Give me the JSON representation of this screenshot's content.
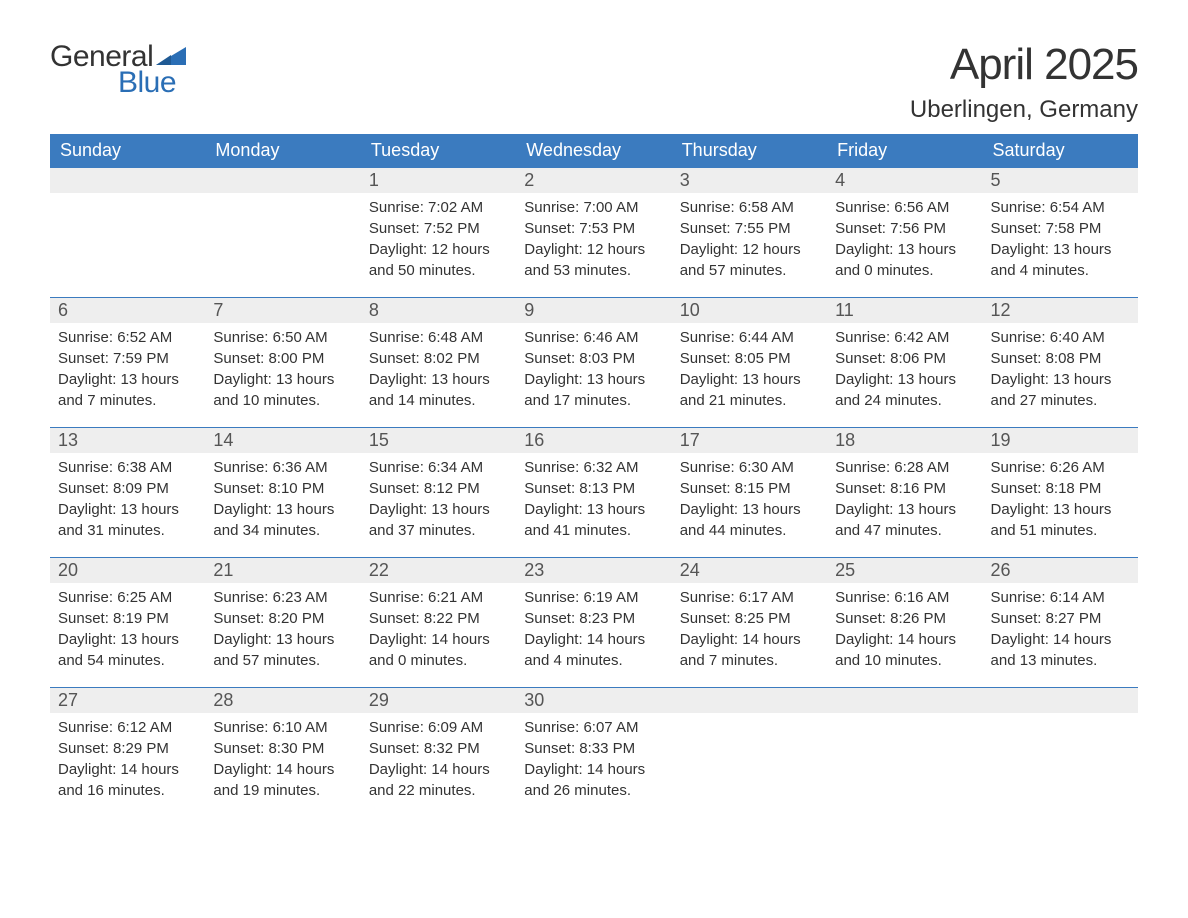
{
  "brand": {
    "general": "General",
    "blue": "Blue",
    "tri_color": "#2a6eb5"
  },
  "header": {
    "month": "April 2025",
    "location": "Uberlingen, Germany"
  },
  "colors": {
    "header_bg": "#3b7bbf",
    "header_text": "#ffffff",
    "daynum_bg": "#eeeeee",
    "row_rule": "#3b7bbf",
    "body_text": "#333333",
    "page_bg": "#ffffff"
  },
  "typography": {
    "month_fontsize_pt": 33,
    "location_fontsize_pt": 18,
    "dayname_fontsize_pt": 14,
    "daynum_fontsize_pt": 14,
    "body_fontsize_pt": 11,
    "font_family": "Arial"
  },
  "calendar": {
    "type": "table",
    "columns": [
      "Sunday",
      "Monday",
      "Tuesday",
      "Wednesday",
      "Thursday",
      "Friday",
      "Saturday"
    ],
    "weeks": [
      [
        null,
        null,
        {
          "n": "1",
          "sunrise": "7:02 AM",
          "sunset": "7:52 PM",
          "dl": "12 hours and 50 minutes."
        },
        {
          "n": "2",
          "sunrise": "7:00 AM",
          "sunset": "7:53 PM",
          "dl": "12 hours and 53 minutes."
        },
        {
          "n": "3",
          "sunrise": "6:58 AM",
          "sunset": "7:55 PM",
          "dl": "12 hours and 57 minutes."
        },
        {
          "n": "4",
          "sunrise": "6:56 AM",
          "sunset": "7:56 PM",
          "dl": "13 hours and 0 minutes."
        },
        {
          "n": "5",
          "sunrise": "6:54 AM",
          "sunset": "7:58 PM",
          "dl": "13 hours and 4 minutes."
        }
      ],
      [
        {
          "n": "6",
          "sunrise": "6:52 AM",
          "sunset": "7:59 PM",
          "dl": "13 hours and 7 minutes."
        },
        {
          "n": "7",
          "sunrise": "6:50 AM",
          "sunset": "8:00 PM",
          "dl": "13 hours and 10 minutes."
        },
        {
          "n": "8",
          "sunrise": "6:48 AM",
          "sunset": "8:02 PM",
          "dl": "13 hours and 14 minutes."
        },
        {
          "n": "9",
          "sunrise": "6:46 AM",
          "sunset": "8:03 PM",
          "dl": "13 hours and 17 minutes."
        },
        {
          "n": "10",
          "sunrise": "6:44 AM",
          "sunset": "8:05 PM",
          "dl": "13 hours and 21 minutes."
        },
        {
          "n": "11",
          "sunrise": "6:42 AM",
          "sunset": "8:06 PM",
          "dl": "13 hours and 24 minutes."
        },
        {
          "n": "12",
          "sunrise": "6:40 AM",
          "sunset": "8:08 PM",
          "dl": "13 hours and 27 minutes."
        }
      ],
      [
        {
          "n": "13",
          "sunrise": "6:38 AM",
          "sunset": "8:09 PM",
          "dl": "13 hours and 31 minutes."
        },
        {
          "n": "14",
          "sunrise": "6:36 AM",
          "sunset": "8:10 PM",
          "dl": "13 hours and 34 minutes."
        },
        {
          "n": "15",
          "sunrise": "6:34 AM",
          "sunset": "8:12 PM",
          "dl": "13 hours and 37 minutes."
        },
        {
          "n": "16",
          "sunrise": "6:32 AM",
          "sunset": "8:13 PM",
          "dl": "13 hours and 41 minutes."
        },
        {
          "n": "17",
          "sunrise": "6:30 AM",
          "sunset": "8:15 PM",
          "dl": "13 hours and 44 minutes."
        },
        {
          "n": "18",
          "sunrise": "6:28 AM",
          "sunset": "8:16 PM",
          "dl": "13 hours and 47 minutes."
        },
        {
          "n": "19",
          "sunrise": "6:26 AM",
          "sunset": "8:18 PM",
          "dl": "13 hours and 51 minutes."
        }
      ],
      [
        {
          "n": "20",
          "sunrise": "6:25 AM",
          "sunset": "8:19 PM",
          "dl": "13 hours and 54 minutes."
        },
        {
          "n": "21",
          "sunrise": "6:23 AM",
          "sunset": "8:20 PM",
          "dl": "13 hours and 57 minutes."
        },
        {
          "n": "22",
          "sunrise": "6:21 AM",
          "sunset": "8:22 PM",
          "dl": "14 hours and 0 minutes."
        },
        {
          "n": "23",
          "sunrise": "6:19 AM",
          "sunset": "8:23 PM",
          "dl": "14 hours and 4 minutes."
        },
        {
          "n": "24",
          "sunrise": "6:17 AM",
          "sunset": "8:25 PM",
          "dl": "14 hours and 7 minutes."
        },
        {
          "n": "25",
          "sunrise": "6:16 AM",
          "sunset": "8:26 PM",
          "dl": "14 hours and 10 minutes."
        },
        {
          "n": "26",
          "sunrise": "6:14 AM",
          "sunset": "8:27 PM",
          "dl": "14 hours and 13 minutes."
        }
      ],
      [
        {
          "n": "27",
          "sunrise": "6:12 AM",
          "sunset": "8:29 PM",
          "dl": "14 hours and 16 minutes."
        },
        {
          "n": "28",
          "sunrise": "6:10 AM",
          "sunset": "8:30 PM",
          "dl": "14 hours and 19 minutes."
        },
        {
          "n": "29",
          "sunrise": "6:09 AM",
          "sunset": "8:32 PM",
          "dl": "14 hours and 22 minutes."
        },
        {
          "n": "30",
          "sunrise": "6:07 AM",
          "sunset": "8:33 PM",
          "dl": "14 hours and 26 minutes."
        },
        null,
        null,
        null
      ]
    ],
    "labels": {
      "sunrise": "Sunrise:",
      "sunset": "Sunset:",
      "daylight": "Daylight:"
    }
  }
}
